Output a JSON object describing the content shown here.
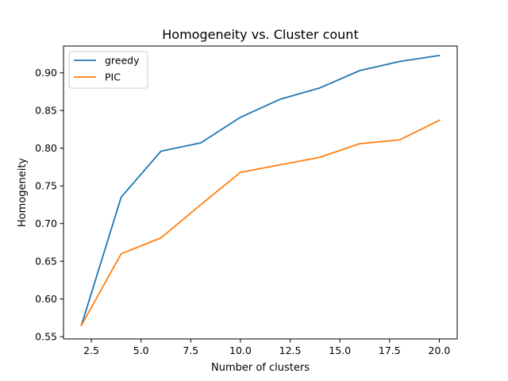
{
  "chart_data": {
    "type": "line",
    "title": "Homogeneity vs. Cluster count",
    "xlabel": "Number of clusters",
    "ylabel": "Homogeneity",
    "xlim": [
      1.1,
      20.9
    ],
    "ylim": [
      0.547,
      0.9355
    ],
    "xticks": [
      2.5,
      5.0,
      7.5,
      10.0,
      12.5,
      15.0,
      17.5,
      20.0
    ],
    "xtick_labels": [
      "2.5",
      "5.0",
      "7.5",
      "10.0",
      "12.5",
      "15.0",
      "17.5",
      "20.0"
    ],
    "yticks": [
      0.55,
      0.6,
      0.65,
      0.7,
      0.75,
      0.8,
      0.85,
      0.9
    ],
    "ytick_labels": [
      "0.55",
      "0.60",
      "0.65",
      "0.70",
      "0.75",
      "0.80",
      "0.85",
      "0.90"
    ],
    "grid": false,
    "legend_position": "top-left",
    "x": [
      2,
      4,
      6,
      8,
      10,
      12,
      14,
      16,
      18,
      20
    ],
    "series": [
      {
        "name": "greedy",
        "color": "#1f77b4",
        "values": [
          0.565,
          0.735,
          0.796,
          0.807,
          0.841,
          0.865,
          0.88,
          0.903,
          0.915,
          0.923
        ]
      },
      {
        "name": "PIC",
        "color": "#ff7f0e",
        "values": [
          0.565,
          0.66,
          0.681,
          0.725,
          0.768,
          0.778,
          0.788,
          0.806,
          0.811,
          0.837
        ]
      }
    ]
  }
}
